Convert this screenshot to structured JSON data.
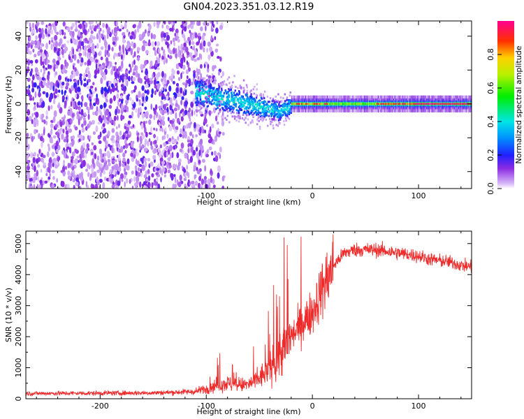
{
  "title": "GN04.2023.351.03.12.R19",
  "colors": {
    "snr_line": "#ee2a2a",
    "frame": "#000000"
  },
  "chart_data": [
    {
      "type": "heatmap",
      "xlabel": "Height of straight line (km)",
      "ylabel": "Frequency (Hz)",
      "xlim": [
        -270,
        150
      ],
      "ylim": [
        -50,
        49
      ],
      "x_ticks": [
        -200,
        -100,
        0,
        100
      ],
      "y_ticks": [
        -40,
        -20,
        0,
        20,
        40
      ],
      "colorbar": {
        "label": "Normalized spectral amplitude",
        "range": [
          0,
          1
        ],
        "ticks": [
          0.0,
          0.2,
          0.4,
          0.6,
          0.8
        ]
      },
      "features": {
        "noise_region_x": [
          -270,
          -105
        ],
        "transition_band_x": [
          -110,
          -20
        ],
        "transition_center_hz": [
          7,
          -6
        ],
        "steady_band_center_hz": 0,
        "steady_band_x": [
          -20,
          150
        ]
      }
    },
    {
      "type": "line",
      "xlabel": "Height of straight line (km)",
      "ylabel": "SNR (10 * v/v)",
      "xlim": [
        -270,
        150
      ],
      "ylim": [
        0,
        5400
      ],
      "x_ticks": [
        -200,
        -100,
        0,
        100
      ],
      "y_ticks": [
        0,
        1000,
        2000,
        3000,
        4000,
        5000
      ],
      "series": [
        {
          "x": [
            -270,
            -200,
            -150,
            -110,
            -100,
            -90,
            -80,
            -70,
            -60,
            -50,
            -40,
            -30,
            -20,
            -10,
            0,
            10,
            20,
            30,
            40,
            50,
            60,
            70,
            80,
            90,
            100,
            110,
            120,
            130,
            140,
            150
          ],
          "values": [
            170,
            180,
            190,
            230,
            320,
            450,
            500,
            430,
            460,
            650,
            1000,
            1500,
            2000,
            2400,
            2800,
            3600,
            4300,
            4700,
            4800,
            4800,
            4800,
            4750,
            4700,
            4650,
            4600,
            4500,
            4450,
            4400,
            4300,
            4250
          ]
        }
      ]
    }
  ]
}
